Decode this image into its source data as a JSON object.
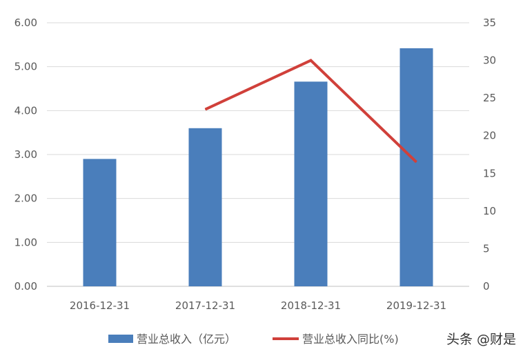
{
  "chart_data": {
    "type": "bar",
    "categories": [
      "2016-12-31",
      "2017-12-31",
      "2018-12-31",
      "2019-12-31"
    ],
    "series": [
      {
        "name": "营业总收入（亿元）",
        "kind": "bar",
        "axis": "left",
        "color": "#4A7EBB",
        "values": [
          2.9,
          3.6,
          4.66,
          5.42
        ]
      },
      {
        "name": "营业总收入同比(%)",
        "kind": "line",
        "axis": "right",
        "color": "#D0403A",
        "values": [
          null,
          23.5,
          30.0,
          16.5
        ]
      }
    ],
    "y_left": {
      "ylim": [
        0,
        6
      ],
      "ticks": [
        "0.00",
        "1.00",
        "2.00",
        "3.00",
        "4.00",
        "5.00",
        "6.00"
      ]
    },
    "y_right": {
      "ylim": [
        0,
        35
      ],
      "ticks": [
        "0",
        "5",
        "10",
        "15",
        "20",
        "25",
        "30",
        "35"
      ]
    },
    "grid": true,
    "legend": "bottom"
  },
  "watermark": "头条 @财是"
}
